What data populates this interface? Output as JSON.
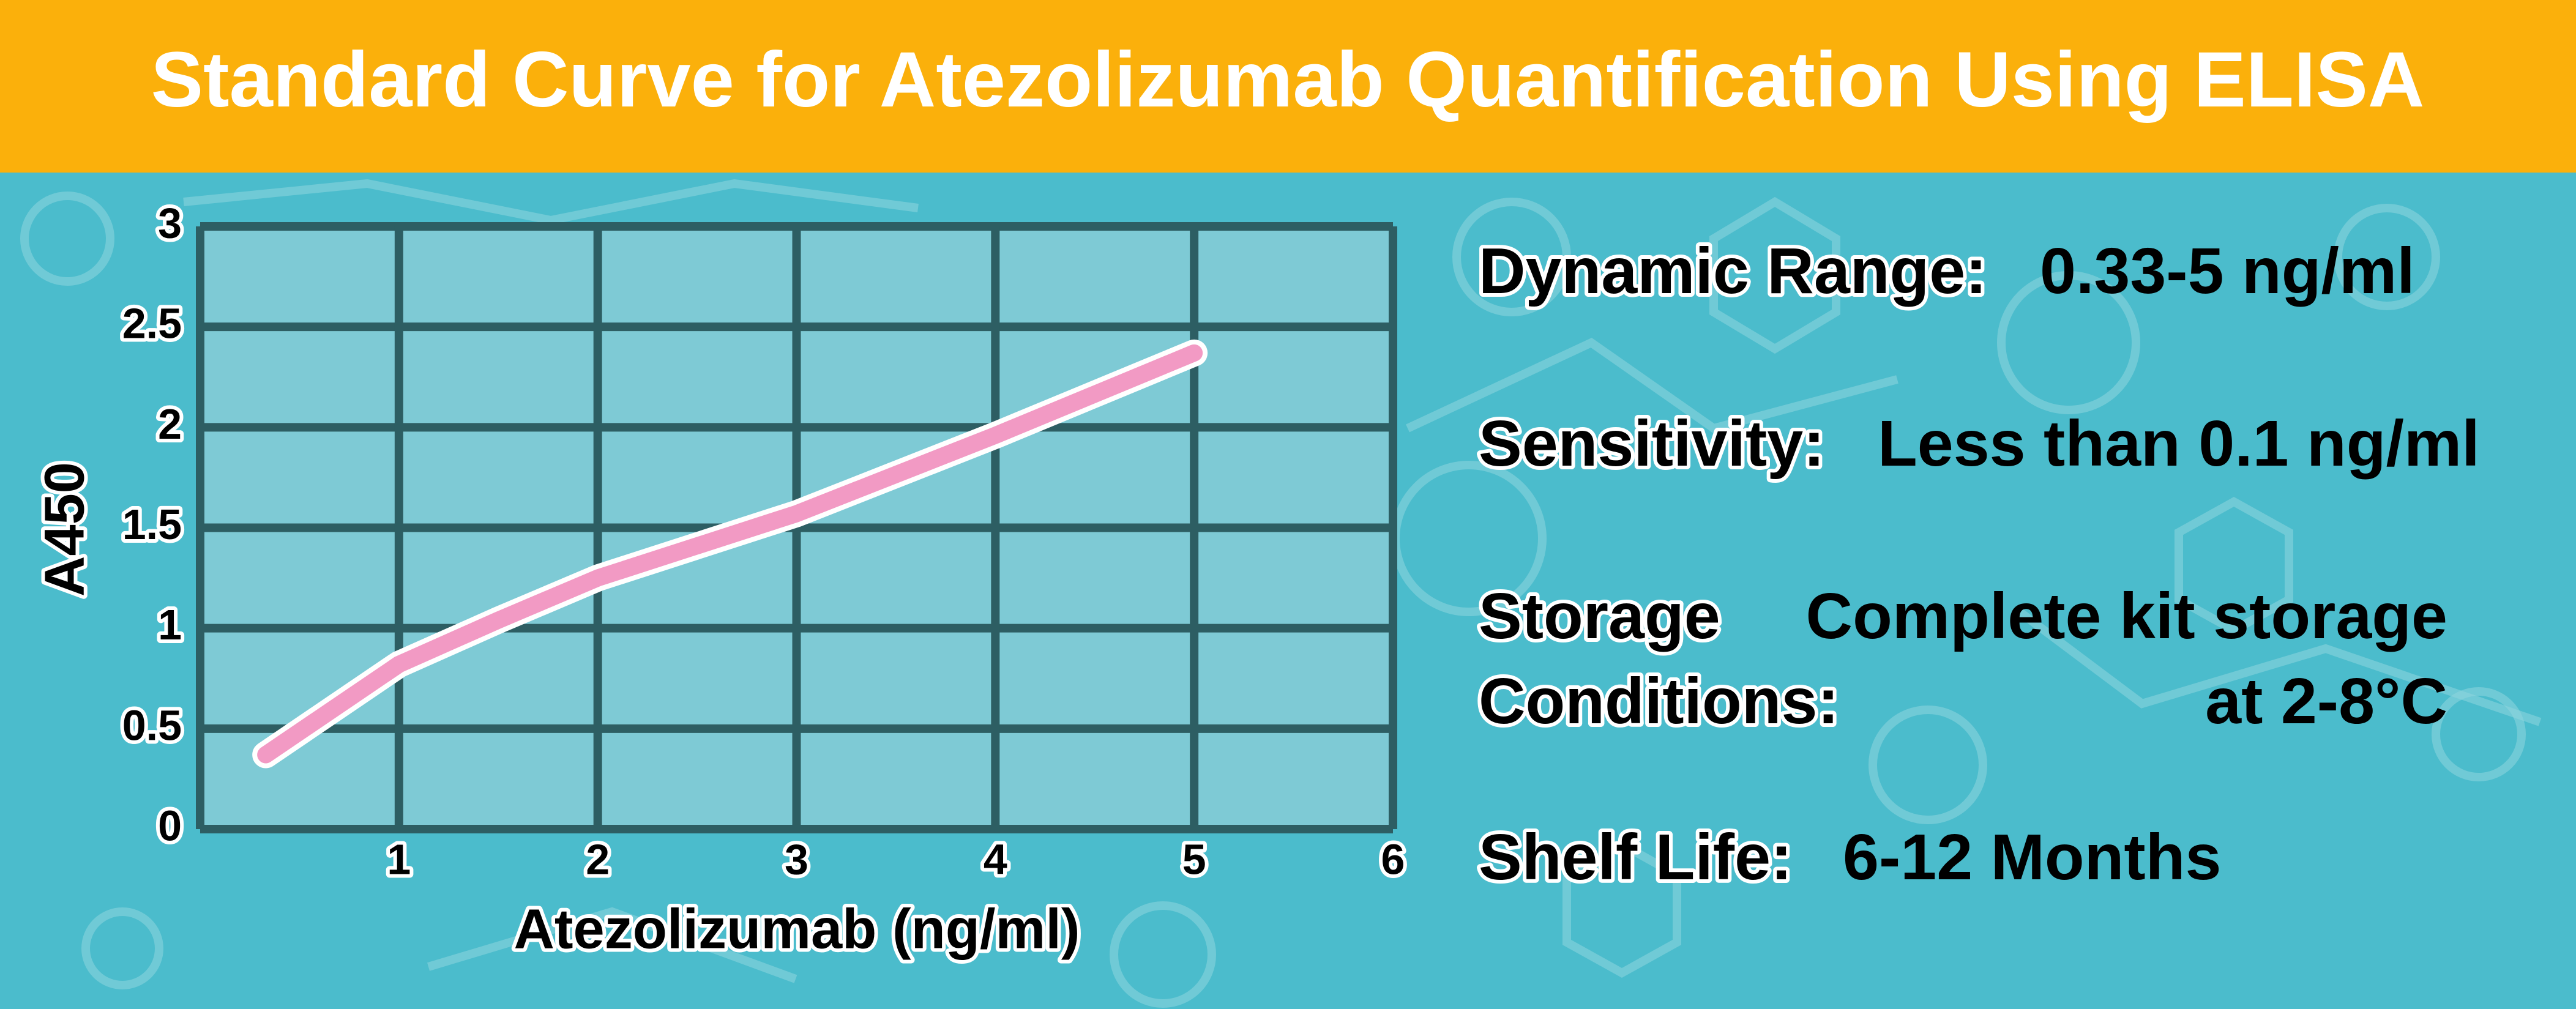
{
  "chart_data": {
    "type": "line",
    "title": "Standard Curve for Atezolizumab Quantification Using ELISA",
    "xlabel": "Atezolizumab (ng/ml)",
    "ylabel": "A450",
    "x": [
      0.33,
      1,
      1.5,
      2,
      3,
      4,
      5
    ],
    "series": [
      {
        "color": "#f29ac4",
        "values": [
          0.37,
          0.82,
          1.04,
          1.25,
          1.57,
          1.96,
          2.37
        ]
      }
    ],
    "xlim": [
      0,
      6
    ],
    "xticks": [
      1,
      2,
      3,
      4,
      5,
      6
    ],
    "ylim": [
      0,
      3
    ],
    "yticks": [
      0,
      0.5,
      1,
      1.5,
      2,
      2.5,
      3
    ],
    "grid": true
  },
  "info": [
    {
      "label": [
        "Dynamic Range:"
      ],
      "value": [
        "0.33-5 ng/ml"
      ]
    },
    {
      "label": [
        "Sensitivity:"
      ],
      "value": [
        "Less than 0.1 ng/ml"
      ]
    },
    {
      "label": [
        "Storage",
        "Conditions:"
      ],
      "value": [
        "Complete kit storage",
        "at 2-8°C"
      ]
    },
    {
      "label": [
        "Shelf Life:"
      ],
      "value": [
        "6-12 Months"
      ]
    }
  ]
}
